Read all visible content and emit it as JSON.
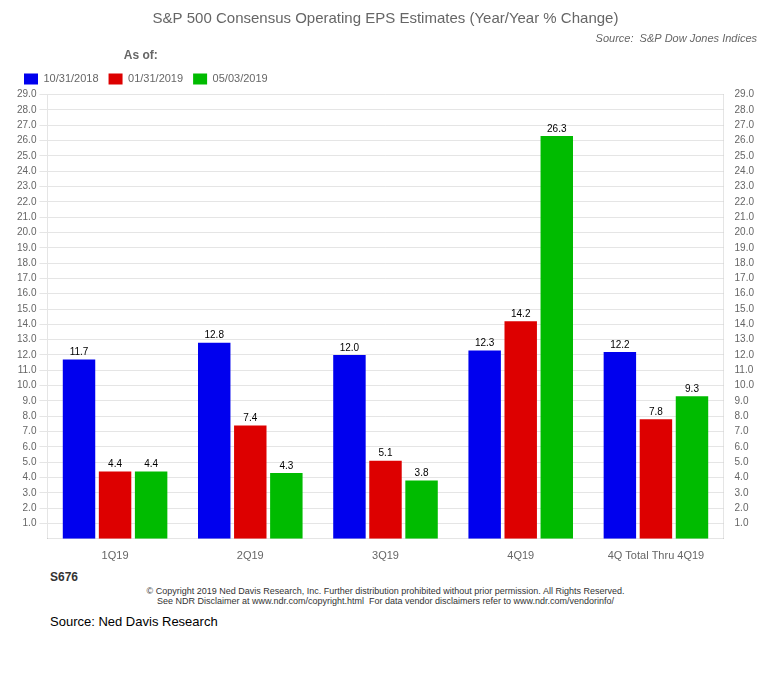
{
  "chart_data": {
    "type": "bar",
    "title": "S&P 500 Consensus Operating EPS Estimates (Year/Year % Change)",
    "categories": [
      "1Q19",
      "2Q19",
      "3Q19",
      "4Q19",
      "4Q Total Thru 4Q19"
    ],
    "series": [
      {
        "name": "10/31/2018",
        "color": "#0000EE",
        "values": [
          11.7,
          12.8,
          12.0,
          12.3,
          12.2
        ],
        "value_labels": [
          "11.7",
          "12.8",
          "12.0",
          "12.3",
          "12.2"
        ]
      },
      {
        "name": "01/31/2019",
        "color": "#DD0000",
        "values": [
          4.4,
          7.4,
          5.1,
          14.2,
          7.8
        ]
      },
      {
        "name": "05/03/2019",
        "color": "#00BB00",
        "values": [
          4.4,
          4.3,
          3.8,
          26.3,
          9.3
        ]
      }
    ],
    "ylim": [
      0,
      29.0
    ],
    "yticks": [
      {
        "value": 1,
        "label": "1.0"
      },
      {
        "value": 2,
        "label": "2.0"
      },
      {
        "value": 3,
        "label": "3.0"
      },
      {
        "value": 4,
        "label": "4.0"
      },
      {
        "value": 5,
        "label": "5.0"
      },
      {
        "value": 6,
        "label": "6.0"
      },
      {
        "value": 7,
        "label": "7.0"
      },
      {
        "value": 8,
        "label": "8.0"
      },
      {
        "value": 9,
        "label": "9.0"
      },
      {
        "value": 10,
        "label": "10.0"
      },
      {
        "value": 11,
        "label": "11.0"
      },
      {
        "value": 12,
        "label": "12.0"
      },
      {
        "value": 13,
        "label": "13.0"
      },
      {
        "value": 14,
        "label": "14.0"
      },
      {
        "value": 15,
        "label": "15.0"
      },
      {
        "value": 16,
        "label": "16.0"
      },
      {
        "value": 17,
        "label": "17.0"
      },
      {
        "value": 18,
        "label": "18.0"
      },
      {
        "value": 19,
        "label": "19.0"
      },
      {
        "value": 20,
        "label": "20.0"
      },
      {
        "value": 21,
        "label": "21.0"
      },
      {
        "value": 22,
        "label": "22.0"
      },
      {
        "value": 23,
        "label": "23.0"
      },
      {
        "value": 24,
        "label": "24.0"
      },
      {
        "value": 25,
        "label": "25.0"
      },
      {
        "value": 26,
        "label": "26.0"
      },
      {
        "value": 27,
        "label": "27.0"
      },
      {
        "value": 28,
        "label": "28.0"
      },
      {
        "value": 29,
        "label": "29.0"
      }
    ],
    "y2lim": [
      0,
      29.0
    ],
    "y2ticks": [
      {
        "value": 1,
        "label": "1.0"
      },
      {
        "value": 2,
        "label": "2.0"
      },
      {
        "value": 3,
        "label": "3.0"
      },
      {
        "value": 4,
        "label": "4.0"
      },
      {
        "value": 5,
        "label": "5.0"
      },
      {
        "value": 6,
        "label": "6.0"
      },
      {
        "value": 7,
        "label": "7.0"
      },
      {
        "value": 8,
        "label": "8.0"
      },
      {
        "value": 9,
        "label": "9.0"
      },
      {
        "value": 10,
        "label": "10.0"
      },
      {
        "value": 11,
        "label": "11.0"
      },
      {
        "value": 12,
        "label": "12.0"
      },
      {
        "value": 13,
        "label": "13.0"
      },
      {
        "value": 14,
        "label": "14.0"
      },
      {
        "value": 15,
        "label": "15.0"
      },
      {
        "value": 16,
        "label": "16.0"
      },
      {
        "value": 17,
        "label": "17.0"
      },
      {
        "value": 18,
        "label": "18.0"
      },
      {
        "value": 19,
        "label": "19.0"
      },
      {
        "value": 20,
        "label": "20.0"
      },
      {
        "value": 21,
        "label": "21.0"
      },
      {
        "value": 22,
        "label": "22.0"
      },
      {
        "value": 23,
        "label": "23.0"
      },
      {
        "value": 24,
        "label": "24.0"
      },
      {
        "value": 25,
        "label": "25.0"
      },
      {
        "value": 26,
        "label": "26.0"
      },
      {
        "value": 27,
        "label": "27.0"
      },
      {
        "value": 28,
        "label": "28.0"
      },
      {
        "value": 29,
        "label": "29.0"
      }
    ],
    "grid": true,
    "legend": "upper left",
    "data_labels": true,
    "annotations": [
      "As of:",
      "Source:  S&P Dow Jones Indices",
      "S676",
      "© Copyright 2019 Ned Davis Research, Inc. Further distribution prohibited without prior permission. All Rights Reserved.\nSee NDR Disclaimer at www.ndr.com/copyright.html  For data vendor disclaimers refer to www.ndr.com/vendorinfo/",
      "Source: Ned Davis Research"
    ]
  }
}
